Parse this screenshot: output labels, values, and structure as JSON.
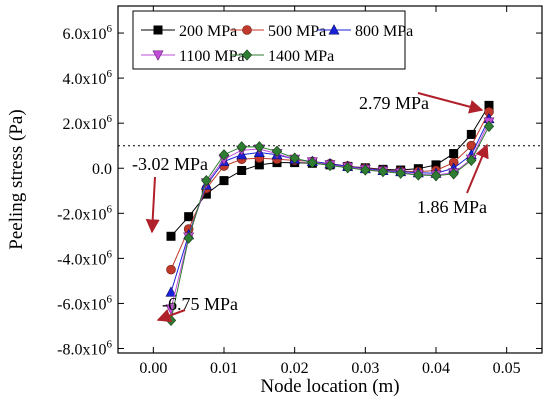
{
  "chart_data": {
    "type": "line",
    "xlabel": "Node location (m)",
    "ylabel": "Peeling stress (Pa)",
    "xlim": [
      -0.005,
      0.055
    ],
    "ylim": [
      -8200000,
      7200000
    ],
    "x_ticks": [
      0.0,
      0.01,
      0.02,
      0.03,
      0.04,
      0.05
    ],
    "x_tick_labels": [
      "0.00",
      "0.01",
      "0.02",
      "0.03",
      "0.04",
      "0.05"
    ],
    "y_ticks": [
      -8000000,
      -6000000,
      -4000000,
      -2000000,
      0,
      2000000,
      4000000,
      6000000
    ],
    "y_tick_labels": [
      {
        "mant": "-8.0x10",
        "exp": "6"
      },
      {
        "mant": "-6.0x10",
        "exp": "6"
      },
      {
        "mant": "-4.0x10",
        "exp": "6"
      },
      {
        "mant": "-2.0x10",
        "exp": "6"
      },
      {
        "mant": "0.0",
        "exp": ""
      },
      {
        "mant": "2.0x10",
        "exp": "6"
      },
      {
        "mant": "4.0x10",
        "exp": "6"
      },
      {
        "mant": "6.0x10",
        "exp": "6"
      }
    ],
    "reference_line_y": 1000000,
    "legend_position": "top-left",
    "x": [
      0.0025,
      0.005,
      0.0075,
      0.01,
      0.0125,
      0.015,
      0.0175,
      0.02,
      0.0225,
      0.025,
      0.0275,
      0.03,
      0.0325,
      0.035,
      0.0375,
      0.04,
      0.0425,
      0.045,
      0.0475
    ],
    "series": [
      {
        "name": "200 MPa",
        "color": "#000000",
        "marker": "square",
        "values": [
          -3020000,
          -2150000,
          -1150000,
          -550000,
          -100000,
          150000,
          250000,
          250000,
          220000,
          150000,
          80000,
          20000,
          -50000,
          -80000,
          -20000,
          150000,
          650000,
          1500000,
          2790000
        ]
      },
      {
        "name": "500 MPa",
        "color": "#c0392b",
        "marker": "circle",
        "values": [
          -4500000,
          -2700000,
          -900000,
          100000,
          400000,
          450000,
          400000,
          350000,
          300000,
          200000,
          100000,
          0,
          -80000,
          -130000,
          -150000,
          -100000,
          250000,
          1000000,
          2500000
        ]
      },
      {
        "name": "800 MPa",
        "color": "#1a22d9",
        "marker": "triangle-up",
        "values": [
          -5500000,
          -2950000,
          -750000,
          300000,
          600000,
          700000,
          600000,
          400000,
          300000,
          200000,
          80000,
          -20000,
          -100000,
          -150000,
          -200000,
          -220000,
          0,
          600000,
          2200000
        ]
      },
      {
        "name": "1100 MPa",
        "color": "#c24dd9",
        "marker": "triangle-down",
        "values": [
          -6250000,
          -3050000,
          -650000,
          400000,
          800000,
          850000,
          650000,
          400000,
          280000,
          150000,
          50000,
          -50000,
          -130000,
          -200000,
          -270000,
          -300000,
          -200000,
          400000,
          2050000
        ]
      },
      {
        "name": "1400 MPa",
        "color": "#2e7d32",
        "marker": "diamond",
        "values": [
          -6750000,
          -3100000,
          -550000,
          600000,
          950000,
          950000,
          750000,
          450000,
          250000,
          120000,
          20000,
          -80000,
          -150000,
          -220000,
          -300000,
          -330000,
          -250000,
          350000,
          1860000
        ]
      }
    ],
    "annotations": [
      {
        "text": "2.79 MPa",
        "x": 0.0475,
        "y": 2790000
      },
      {
        "text": "-3.02 MPa",
        "x": 0.0025,
        "y": -3020000
      },
      {
        "text": "1.86 MPa",
        "x": 0.0475,
        "y": 1860000
      },
      {
        "text": "-6.75 MPa",
        "x": 0.0025,
        "y": -6750000
      }
    ]
  }
}
